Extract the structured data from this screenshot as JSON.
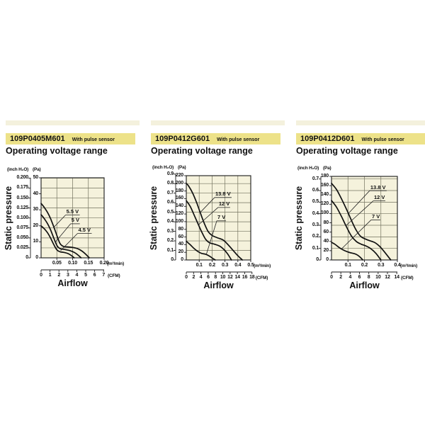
{
  "page": {
    "background": "#ffffff",
    "strip_color": "#f4f1dd",
    "header_bg": "#ede289",
    "plot_bg": "#f5f2dc",
    "grid_color": "#73735f",
    "border_color": "#1a1a1a",
    "curve_color": "#111111",
    "leader_color": "#222222",
    "text_color": "#111111"
  },
  "panels": [
    {
      "model": "109P0405M601",
      "badge": "With pulse sensor",
      "subtitle": "Operating voltage range"
    },
    {
      "model": "109P0412G601",
      "badge": "With pulse sensor",
      "subtitle": "Operating voltage range"
    },
    {
      "model": "109P0412D601",
      "badge": "With pulse sensor",
      "subtitle": "Operating voltage range"
    }
  ],
  "chart_data": [
    {
      "type": "line",
      "title": "109P0405M601 operating voltage range",
      "xlabel": "Airflow",
      "ylabel": "Static pressure",
      "y_unit_left": "(inch H₂O)",
      "y_unit_right": "(Pa)",
      "x_unit_top": "(m³/min)",
      "x_unit_bottom": "(CFM)",
      "y_max_pa": 50,
      "x_max_m3min": 0.2,
      "y_ticks_pa": [
        50,
        40,
        30,
        20,
        10,
        0
      ],
      "y_ticks_inch": [
        {
          "v": 0.2,
          "label": "0.200"
        },
        {
          "v": 0.175,
          "label": "0.175"
        },
        {
          "v": 0.15,
          "label": "0.150"
        },
        {
          "v": 0.125,
          "label": "0.125"
        },
        {
          "v": 0.1,
          "label": "0.100"
        },
        {
          "v": 0.075,
          "label": "0.075"
        },
        {
          "v": 0.05,
          "label": "0.050"
        },
        {
          "v": 0.025,
          "label": "0.025"
        },
        {
          "v": 0,
          "label": "0"
        }
      ],
      "x_ticks_m3min": [
        {
          "v": 0.05,
          "label": "0.05"
        },
        {
          "v": 0.1,
          "label": "0.10"
        },
        {
          "v": 0.15,
          "label": "0.15"
        },
        {
          "v": 0.2,
          "label": "0.20"
        }
      ],
      "x_ticks_cfm": [
        0,
        1,
        2,
        3,
        4,
        5,
        6,
        7
      ],
      "series": [
        {
          "name": "5.5 V",
          "points": [
            [
              0,
              34
            ],
            [
              0.01,
              31.5
            ],
            [
              0.02,
              28.5
            ],
            [
              0.03,
              24.5
            ],
            [
              0.04,
              19.5
            ],
            [
              0.05,
              14
            ],
            [
              0.06,
              9
            ],
            [
              0.07,
              7.2
            ],
            [
              0.085,
              6.8
            ],
            [
              0.1,
              6.5
            ],
            [
              0.115,
              5.8
            ],
            [
              0.13,
              4.2
            ],
            [
              0.143,
              2
            ],
            [
              0.153,
              0
            ]
          ]
        },
        {
          "name": "5 V",
          "points": [
            [
              0,
              27
            ],
            [
              0.01,
              24.5
            ],
            [
              0.02,
              21.5
            ],
            [
              0.03,
              17.5
            ],
            [
              0.04,
              12.5
            ],
            [
              0.05,
              7.8
            ],
            [
              0.06,
              5.8
            ],
            [
              0.075,
              5.2
            ],
            [
              0.09,
              4.6
            ],
            [
              0.105,
              3.4
            ],
            [
              0.118,
              1.6
            ],
            [
              0.127,
              0
            ]
          ]
        },
        {
          "name": "4.5 V",
          "points": [
            [
              0,
              20
            ],
            [
              0.01,
              18.2
            ],
            [
              0.02,
              15.8
            ],
            [
              0.03,
              12.4
            ],
            [
              0.04,
              8.4
            ],
            [
              0.05,
              5
            ],
            [
              0.06,
              3.8
            ],
            [
              0.072,
              3.4
            ],
            [
              0.085,
              2.7
            ],
            [
              0.095,
              1.6
            ],
            [
              0.105,
              0
            ]
          ]
        }
      ],
      "labels": [
        {
          "text": "5.5 V",
          "x": 0.08,
          "pa": 27,
          "tip": [
            0.04,
            19
          ]
        },
        {
          "text": "5 V",
          "x": 0.096,
          "pa": 21.5,
          "tip": [
            0.046,
            10
          ]
        },
        {
          "text": "4.5 V",
          "x": 0.118,
          "pa": 15.5,
          "tip": [
            0.062,
            4.5
          ]
        }
      ]
    },
    {
      "type": "line",
      "title": "109P0412G601 operating voltage range",
      "xlabel": "Airflow",
      "ylabel": "Static pressure",
      "y_unit_left": "(inch H₂O)",
      "y_unit_right": "(Pa)",
      "x_unit_top": "(m³/min)",
      "x_unit_bottom": "(CFM)",
      "y_max_pa": 220,
      "x_max_m3min": 0.5,
      "y_ticks_pa": [
        220,
        200,
        180,
        160,
        140,
        120,
        100,
        80,
        60,
        40,
        20,
        0
      ],
      "y_ticks_inch": [
        {
          "v": 0.9,
          "label": "0.9"
        },
        {
          "v": 0.8,
          "label": "0.8"
        },
        {
          "v": 0.7,
          "label": "0.7"
        },
        {
          "v": 0.6,
          "label": "0.6"
        },
        {
          "v": 0.5,
          "label": "0.5"
        },
        {
          "v": 0.4,
          "label": "0.4"
        },
        {
          "v": 0.3,
          "label": "0.3"
        },
        {
          "v": 0.2,
          "label": "0.2"
        },
        {
          "v": 0.1,
          "label": "0.1"
        },
        {
          "v": 0,
          "label": "0"
        }
      ],
      "x_ticks_m3min": [
        {
          "v": 0.1,
          "label": "0.1"
        },
        {
          "v": 0.2,
          "label": "0.2"
        },
        {
          "v": 0.3,
          "label": "0.3"
        },
        {
          "v": 0.4,
          "label": "0.4"
        },
        {
          "v": 0.5,
          "label": "0.5"
        }
      ],
      "x_ticks_cfm": [
        0,
        2,
        4,
        6,
        8,
        10,
        12,
        14,
        16,
        18
      ],
      "series": [
        {
          "name": "13.8 V",
          "points": [
            [
              0,
              200
            ],
            [
              0.02,
              192
            ],
            [
              0.05,
              174
            ],
            [
              0.08,
              150
            ],
            [
              0.11,
              122
            ],
            [
              0.14,
              95
            ],
            [
              0.17,
              74
            ],
            [
              0.2,
              64
            ],
            [
              0.24,
              58
            ],
            [
              0.28,
              53
            ],
            [
              0.31,
              45
            ],
            [
              0.35,
              30
            ],
            [
              0.4,
              11
            ],
            [
              0.435,
              0
            ]
          ]
        },
        {
          "name": "12 V",
          "points": [
            [
              0,
              155
            ],
            [
              0.03,
              140
            ],
            [
              0.06,
              118
            ],
            [
              0.09,
              95
            ],
            [
              0.12,
              73
            ],
            [
              0.15,
              54
            ],
            [
              0.18,
              45
            ],
            [
              0.22,
              41
            ],
            [
              0.26,
              36
            ],
            [
              0.29,
              28
            ],
            [
              0.32,
              16
            ],
            [
              0.35,
              0
            ]
          ]
        },
        {
          "name": "7 V",
          "points": [
            [
              0,
              49
            ],
            [
              0.03,
              40
            ],
            [
              0.06,
              30
            ],
            [
              0.09,
              22
            ],
            [
              0.12,
              17
            ],
            [
              0.15,
              15
            ],
            [
              0.18,
              10
            ],
            [
              0.205,
              4
            ],
            [
              0.225,
              0
            ]
          ]
        }
      ],
      "labels": [
        {
          "text": "13.8 V",
          "x": 0.225,
          "pa": 164,
          "tip": [
            0.108,
            124
          ]
        },
        {
          "text": "12 V",
          "x": 0.252,
          "pa": 138,
          "tip": [
            0.096,
            92
          ]
        },
        {
          "text": "7 V",
          "x": 0.242,
          "pa": 103,
          "tip": [
            0.154,
            13
          ]
        }
      ]
    },
    {
      "type": "line",
      "title": "109P0412D601 operating voltage range",
      "xlabel": "Airflow",
      "ylabel": "Static pressure",
      "y_unit_left": "(inch H₂O)",
      "y_unit_right": "(Pa)",
      "x_unit_top": "(m³/min)",
      "x_unit_bottom": "(CFM)",
      "y_max_pa": 180,
      "x_max_m3min": 0.4,
      "y_ticks_pa": [
        180,
        160,
        140,
        120,
        100,
        80,
        60,
        40,
        20,
        0
      ],
      "y_ticks_inch": [
        {
          "v": 0.7,
          "label": "0.7"
        },
        {
          "v": 0.6,
          "label": "0.6"
        },
        {
          "v": 0.5,
          "label": "0.5"
        },
        {
          "v": 0.4,
          "label": "0.4"
        },
        {
          "v": 0.3,
          "label": "0.3"
        },
        {
          "v": 0.2,
          "label": "0.2"
        },
        {
          "v": 0.1,
          "label": "0.1"
        },
        {
          "v": 0,
          "label": "0"
        }
      ],
      "x_ticks_m3min": [
        {
          "v": 0.1,
          "label": "0.1"
        },
        {
          "v": 0.2,
          "label": "0.2"
        },
        {
          "v": 0.3,
          "label": "0.3"
        },
        {
          "v": 0.4,
          "label": "0.4"
        }
      ],
      "x_ticks_cfm": [
        0,
        2,
        4,
        6,
        8,
        10,
        12,
        14
      ],
      "series": [
        {
          "name": "13.8 V",
          "points": [
            [
              0,
              165
            ],
            [
              0.03,
              152
            ],
            [
              0.06,
              132
            ],
            [
              0.09,
              110
            ],
            [
              0.12,
              86
            ],
            [
              0.15,
              64
            ],
            [
              0.18,
              50
            ],
            [
              0.22,
              43
            ],
            [
              0.26,
              38
            ],
            [
              0.29,
              30
            ],
            [
              0.32,
              18
            ],
            [
              0.36,
              0
            ]
          ]
        },
        {
          "name": "12 V",
          "points": [
            [
              0,
              128
            ],
            [
              0.03,
              114
            ],
            [
              0.06,
              94
            ],
            [
              0.09,
              72
            ],
            [
              0.12,
              52
            ],
            [
              0.15,
              40
            ],
            [
              0.18,
              34
            ],
            [
              0.21,
              30
            ],
            [
              0.24,
              24
            ],
            [
              0.27,
              14
            ],
            [
              0.3,
              0
            ]
          ]
        },
        {
          "name": "7 V",
          "points": [
            [
              0,
              38
            ],
            [
              0.02,
              34
            ],
            [
              0.05,
              26
            ],
            [
              0.08,
              20
            ],
            [
              0.11,
              16
            ],
            [
              0.14,
              13.5
            ],
            [
              0.16,
              10
            ],
            [
              0.18,
              4
            ],
            [
              0.19,
              0
            ]
          ]
        }
      ],
      "labels": [
        {
          "text": "13.8 V",
          "x": 0.236,
          "pa": 150,
          "tip": [
            0.105,
            101
          ]
        },
        {
          "text": "12 V",
          "x": 0.258,
          "pa": 128,
          "tip": [
            0.088,
            74
          ]
        },
        {
          "text": "7 V",
          "x": 0.245,
          "pa": 87,
          "tip": [
            0.064,
            25
          ]
        }
      ]
    }
  ]
}
